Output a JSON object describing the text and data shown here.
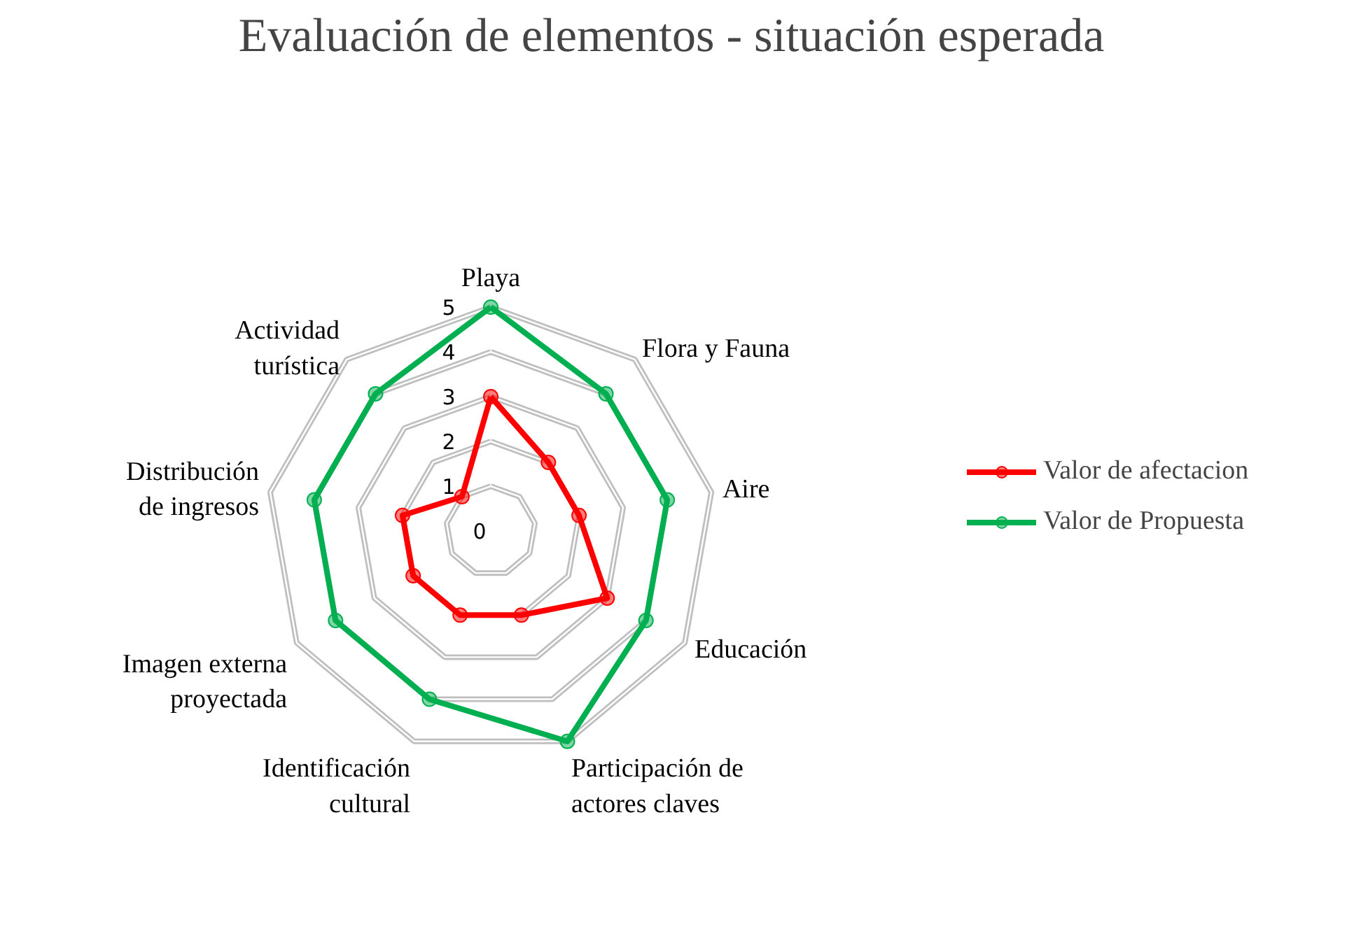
{
  "chart_data": {
    "type": "radar",
    "title": "Evaluación de elementos - situación esperada",
    "categories": [
      "Playa",
      "Flora y Fauna",
      "Aire",
      "Educación",
      "Participación de actores claves",
      "Identificación cultural",
      "Imagen externa proyectada",
      "Distribución de ingresos",
      "Actividad turística"
    ],
    "series": [
      {
        "name": "Valor de afectacion",
        "color": "#ff0000",
        "values": [
          3,
          2,
          2,
          3,
          2,
          2,
          2,
          2,
          1
        ]
      },
      {
        "name": "Valor de Propuesta",
        "color": "#00b050",
        "values": [
          5,
          4,
          4,
          4,
          5,
          4,
          4,
          4,
          4
        ]
      }
    ],
    "ylim": [
      0,
      5
    ],
    "yticks": [
      0,
      1,
      2,
      3,
      4,
      5
    ],
    "grid": true,
    "legend": "right",
    "marker": "circle",
    "line_style": "solid"
  }
}
